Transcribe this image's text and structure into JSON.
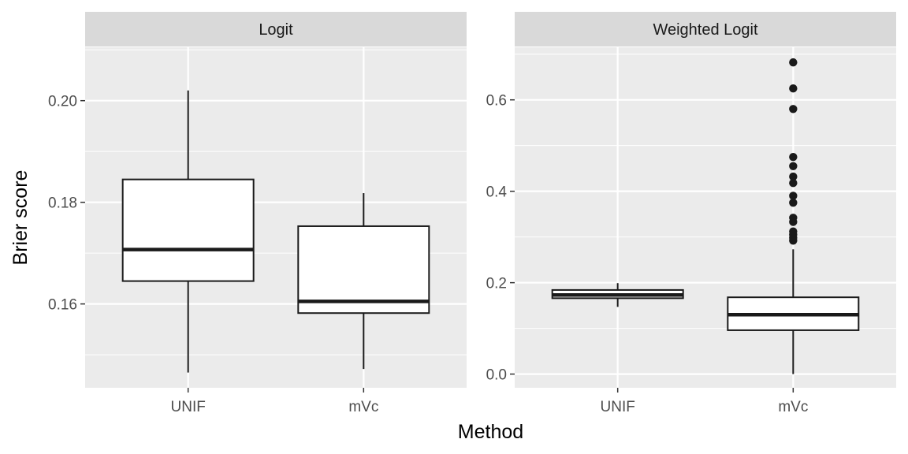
{
  "chart_data": {
    "type": "box",
    "xlabel": "Method",
    "ylabel": "Brier score",
    "categories": [
      "UNIF",
      "mVc"
    ],
    "facets": [
      {
        "title": "Logit",
        "ylim": [
          0.1435,
          0.2105
        ],
        "yticks": [
          0.16,
          0.18,
          0.2
        ],
        "yticklabels": [
          "0.16",
          "0.18",
          "0.20"
        ],
        "boxes": [
          {
            "category": "UNIF",
            "whisker_low": 0.1465,
            "q1": 0.1645,
            "median": 0.1707,
            "q3": 0.1845,
            "whisker_high": 0.202,
            "outliers": []
          },
          {
            "category": "mVc",
            "whisker_low": 0.1472,
            "q1": 0.1582,
            "median": 0.1605,
            "q3": 0.1753,
            "whisker_high": 0.1818,
            "outliers": []
          }
        ]
      },
      {
        "title": "Weighted Logit",
        "ylim": [
          -0.03,
          0.715
        ],
        "yticks": [
          0.0,
          0.2,
          0.4,
          0.6
        ],
        "yticklabels": [
          "0.0",
          "0.2",
          "0.4",
          "0.6"
        ],
        "boxes": [
          {
            "category": "UNIF",
            "whisker_low": 0.147,
            "q1": 0.166,
            "median": 0.173,
            "q3": 0.184,
            "whisker_high": 0.199,
            "outliers": []
          },
          {
            "category": "mVc",
            "whisker_low": 0.0,
            "q1": 0.096,
            "median": 0.13,
            "q3": 0.168,
            "whisker_high": 0.273,
            "outliers": [
              0.292,
              0.298,
              0.305,
              0.312,
              0.333,
              0.342,
              0.375,
              0.39,
              0.418,
              0.432,
              0.455,
              0.475,
              0.58,
              0.625,
              0.682
            ]
          }
        ]
      }
    ]
  }
}
